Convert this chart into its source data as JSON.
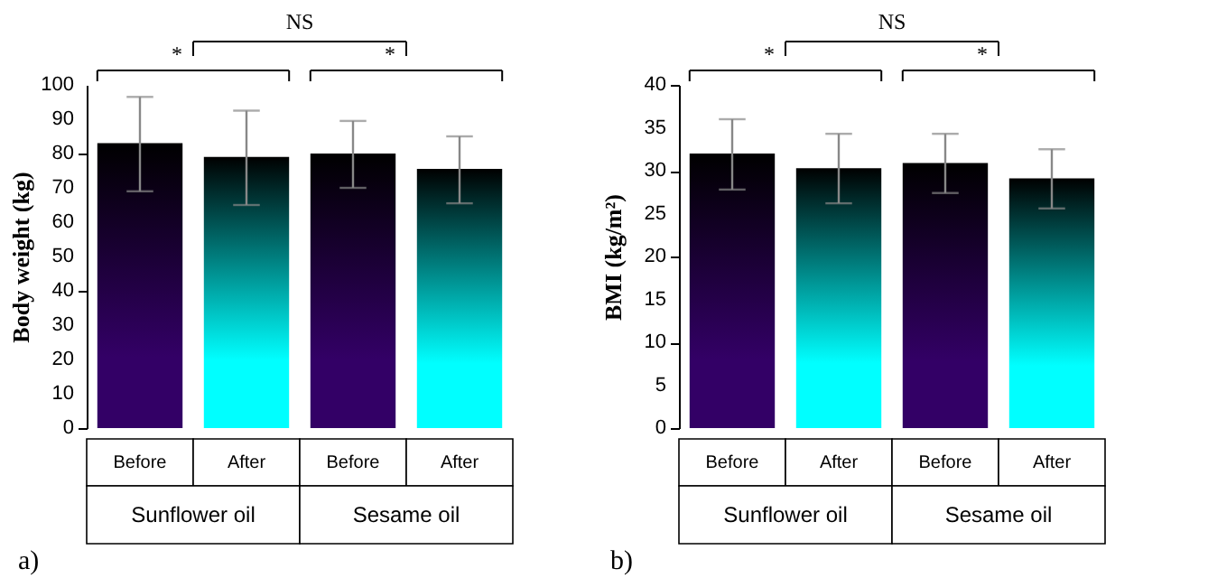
{
  "chart_data": [
    {
      "type": "bar",
      "ylabel": "Body weight (kg)",
      "categories": [
        "Before",
        "After",
        "Before",
        "After"
      ],
      "values": [
        83,
        79,
        80,
        75.5
      ],
      "colors": [
        "#330066",
        "#00ffff",
        "#330066",
        "#00ffff"
      ],
      "errors": [
        [
          69,
          96.5
        ],
        [
          65,
          92.5
        ],
        [
          70,
          89.5
        ],
        [
          65.5,
          85
        ]
      ],
      "ylim": [
        0,
        100
      ],
      "yticks": [
        0,
        10,
        20,
        30,
        40,
        50,
        60,
        70,
        80,
        90,
        100
      ],
      "grid": false,
      "annotations": [
        "*",
        "*",
        "NS",
        "Sunflower oil",
        "Sesame oil",
        "a)"
      ]
    },
    {
      "type": "bar",
      "ylabel": "BMI (kg/m²)",
      "categories": [
        "Before",
        "After",
        "Before",
        "After"
      ],
      "values": [
        32,
        30.3,
        30.9,
        29.1
      ],
      "colors": [
        "#330066",
        "#00ffff",
        "#330066",
        "#00ffff"
      ],
      "errors": [
        [
          27.8,
          36
        ],
        [
          26.2,
          34.3
        ],
        [
          27.4,
          34.3
        ],
        [
          25.6,
          32.5
        ]
      ],
      "ylim": [
        0,
        40
      ],
      "yticks": [
        0,
        5,
        10,
        15,
        20,
        25,
        30,
        35,
        40
      ],
      "grid": false,
      "annotations": [
        "*",
        "*",
        "NS",
        "Sunflower oil",
        "Sesame oil",
        "b)"
      ]
    }
  ]
}
